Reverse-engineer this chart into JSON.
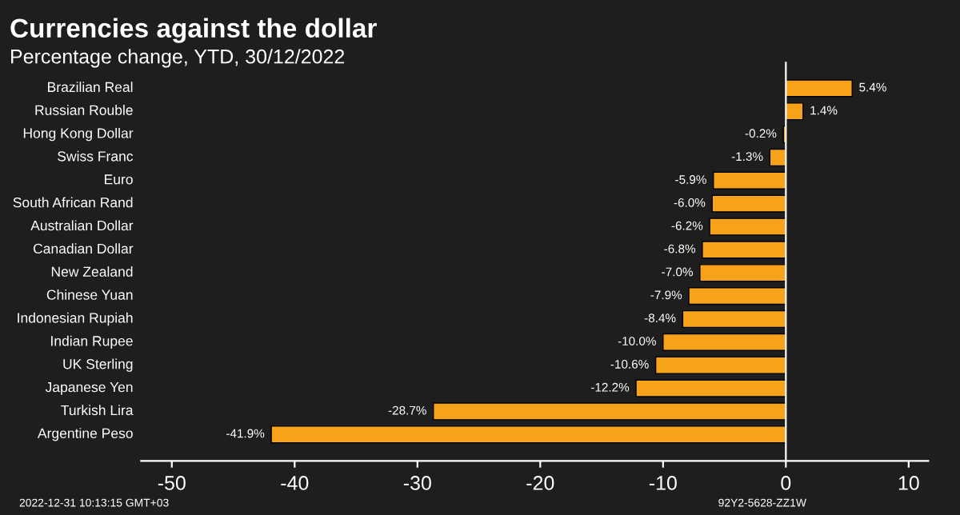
{
  "chart_data": {
    "type": "bar",
    "orientation": "horizontal",
    "title": "Currencies against the dollar",
    "subtitle": "Percentage change, YTD, 30/12/2022",
    "categories": [
      "Brazilian Real",
      "Russian Rouble",
      "Hong Kong Dollar",
      "Swiss Franc",
      "Euro",
      "South African Rand",
      "Australian Dollar",
      "Canadian Dollar",
      "New Zealand",
      "Chinese Yuan",
      "Indonesian Rupiah",
      "Indian Rupee",
      "UK Sterling",
      "Japanese Yen",
      "Turkish Lira",
      "Argentine Peso"
    ],
    "values": [
      5.4,
      1.4,
      -0.2,
      -1.3,
      -5.9,
      -6.0,
      -6.2,
      -6.8,
      -7.0,
      -7.9,
      -8.4,
      -10.0,
      -10.6,
      -12.2,
      -28.7,
      -41.9
    ],
    "value_labels": [
      "5.4%",
      "1.4%",
      "-0.2%",
      "-1.3%",
      "-5.9%",
      "-6.0%",
      "-6.2%",
      "-6.8%",
      "-7.0%",
      "-7.9%",
      "-8.4%",
      "-10.0%",
      "-10.6%",
      "-12.2%",
      "-28.7%",
      "-41.9%"
    ],
    "color": "#f7a21b",
    "xlim": [
      -52.5,
      11.6
    ],
    "xticks": [
      -50,
      -40,
      -30,
      -20,
      -10,
      0,
      10
    ],
    "grid": false,
    "ref_lines": [
      {
        "axis": "x",
        "value": 0,
        "color": "#ffffff"
      }
    ],
    "annotations": [
      "2022-12-31 10:13:15 GMT+03",
      "92Y2-5628-ZZ1W"
    ]
  }
}
